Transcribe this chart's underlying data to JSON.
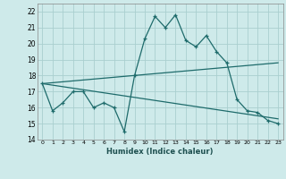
{
  "xlabel": "Humidex (Indice chaleur)",
  "bg_color": "#ceeaea",
  "grid_color": "#aacfcf",
  "line_color": "#1e6b6b",
  "xlim": [
    -0.5,
    23.5
  ],
  "ylim": [
    14,
    22.5
  ],
  "yticks": [
    14,
    15,
    16,
    17,
    18,
    19,
    20,
    21,
    22
  ],
  "xticks": [
    0,
    1,
    2,
    3,
    4,
    5,
    6,
    7,
    8,
    9,
    10,
    11,
    12,
    13,
    14,
    15,
    16,
    17,
    18,
    19,
    20,
    21,
    22,
    23
  ],
  "line1_x": [
    0,
    1,
    2,
    3,
    4,
    5,
    6,
    7,
    8,
    9,
    10,
    11,
    12,
    13,
    14,
    15,
    16,
    17,
    18,
    19,
    20,
    21,
    22,
    23
  ],
  "line1_y": [
    17.5,
    15.8,
    16.3,
    17.0,
    17.0,
    16.0,
    16.3,
    16.0,
    14.5,
    18.0,
    20.3,
    21.7,
    21.0,
    21.8,
    20.2,
    19.8,
    20.5,
    19.5,
    18.8,
    16.5,
    15.8,
    15.7,
    15.2,
    15.0
  ],
  "line2_x": [
    0,
    23
  ],
  "line2_y": [
    17.5,
    18.8
  ],
  "line3_x": [
    0,
    23
  ],
  "line3_y": [
    17.5,
    15.3
  ]
}
